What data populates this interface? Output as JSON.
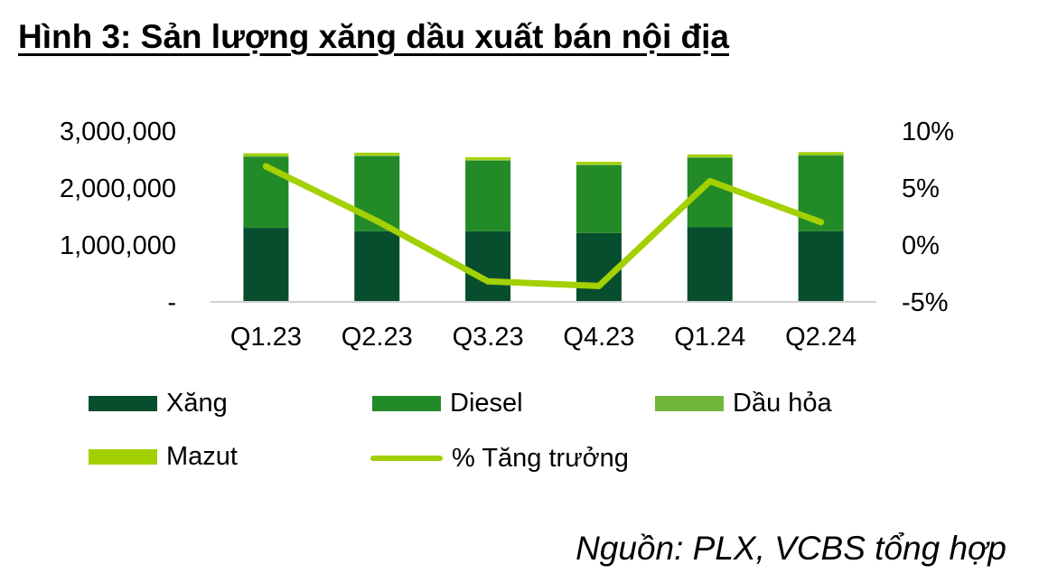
{
  "title": "Hình 3: Sản lượng xăng dầu xuất bán nội địa",
  "source": "Nguồn: PLX, VCBS tổng hợp",
  "chart_data": {
    "type": "bar",
    "stacked": true,
    "categories": [
      "Q1.23",
      "Q2.23",
      "Q3.23",
      "Q4.23",
      "Q1.24",
      "Q2.24"
    ],
    "series": [
      {
        "name": "Xăng",
        "type": "bar",
        "axis": "left",
        "color": "#064e2e",
        "values": [
          1300000,
          1240000,
          1240000,
          1210000,
          1310000,
          1240000
        ]
      },
      {
        "name": "Diesel",
        "type": "bar",
        "axis": "left",
        "color": "#238a28",
        "values": [
          1250000,
          1320000,
          1240000,
          1190000,
          1220000,
          1330000
        ]
      },
      {
        "name": "Dầu hỏa",
        "type": "bar",
        "axis": "left",
        "color": "#6fb83a",
        "values": [
          15000,
          15000,
          15000,
          15000,
          15000,
          15000
        ]
      },
      {
        "name": "Mazut",
        "type": "bar",
        "axis": "left",
        "color": "#a3d000",
        "values": [
          45000,
          45000,
          45000,
          45000,
          45000,
          45000
        ]
      },
      {
        "name": "% Tăng trưởng",
        "type": "line",
        "axis": "right",
        "color": "#a3d000",
        "values": [
          6.9,
          2.1,
          -3.2,
          -3.6,
          5.6,
          2.0
        ]
      }
    ],
    "y_left": {
      "ylim": [
        0,
        3000000
      ],
      "ticks": [
        0,
        1000000,
        2000000,
        3000000
      ],
      "tick_labels": [
        "-",
        "1,000,000",
        "2,000,000",
        "3,000,000"
      ]
    },
    "y_right": {
      "ylim": [
        -5,
        10
      ],
      "ticks": [
        -5,
        0,
        5,
        10
      ],
      "tick_labels": [
        "-5%",
        "0%",
        "5%",
        "10%"
      ]
    },
    "grid": false,
    "legend_position": "bottom"
  }
}
